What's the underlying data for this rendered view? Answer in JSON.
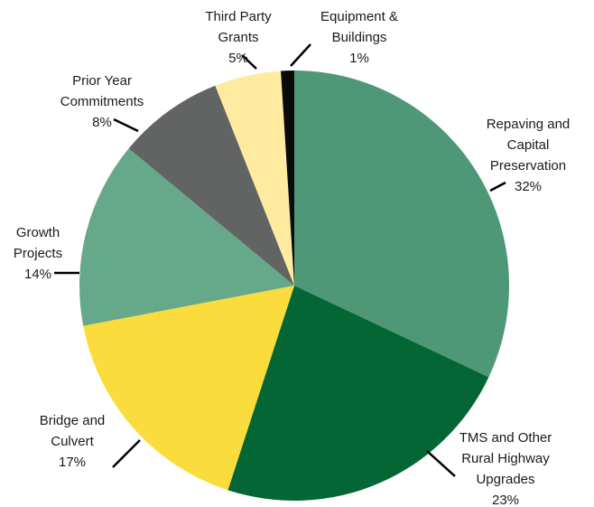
{
  "chart_data": {
    "type": "pie",
    "title": "",
    "slices": [
      {
        "label": [
          "Repaving and",
          "Capital",
          "Preservation"
        ],
        "value": 32,
        "display": "32%",
        "color": "#4e9878"
      },
      {
        "label": [
          "TMS and Other",
          "Rural Highway",
          "Upgrades"
        ],
        "value": 23,
        "display": "23%",
        "color": "#046634"
      },
      {
        "label": [
          "Bridge and",
          "Culvert"
        ],
        "value": 17,
        "display": "17%",
        "color": "#fadd3c"
      },
      {
        "label": [
          "Growth",
          "Projects"
        ],
        "value": 14,
        "display": "14%",
        "color": "#65a88a"
      },
      {
        "label": [
          "Prior Year",
          "Commitments"
        ],
        "value": 8,
        "display": "8%",
        "color": "#626363"
      },
      {
        "label": [
          "Third Party",
          "Grants"
        ],
        "value": 5,
        "display": "5%",
        "color": "#feeb9f"
      },
      {
        "label": [
          "Equipment &",
          "Buildings"
        ],
        "value": 1,
        "display": "1%",
        "color": "#0a0a0a"
      }
    ]
  }
}
